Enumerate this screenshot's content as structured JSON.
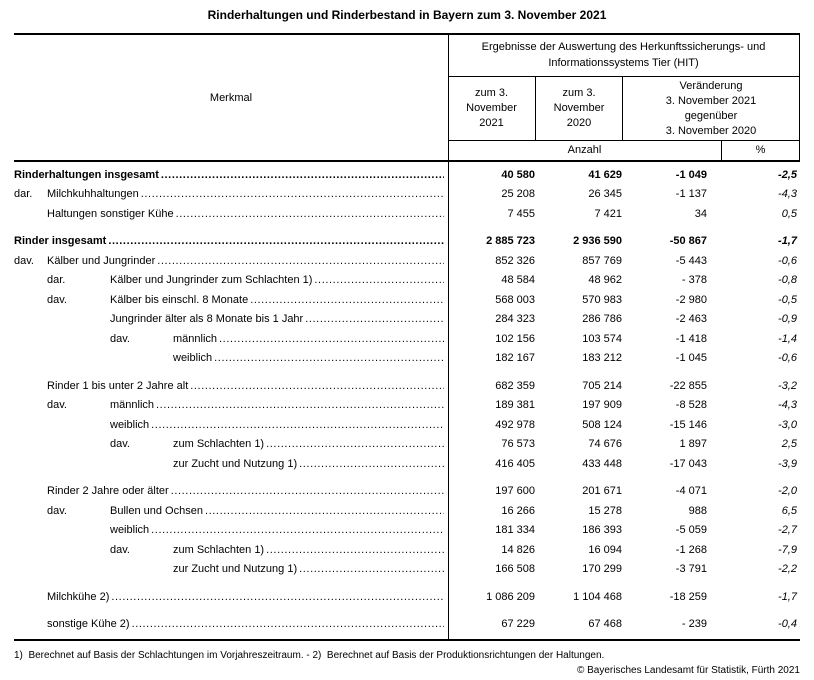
{
  "title": "Rinderhaltungen und Rinderbestand in Bayern zum 3. November 2021",
  "table": {
    "merkmal_header": "Merkmal",
    "spanner": "Ergebnisse der Auswertung des Herkunftssicherungs- und\nInformationssystems Tier (HIT)",
    "col_2021": "zum 3.\nNovember\n2021",
    "col_2020": "zum 3.\nNovember\n2020",
    "col_change": "Veränderung\n3. November 2021\ngegenüber\n3. November 2020",
    "unit_number": "Anzahl",
    "unit_percent": "%",
    "rows": [
      {
        "prefix": "",
        "level": 0,
        "label": "Rinderhaltungen insgesamt",
        "bold": true,
        "gap": false,
        "v2021": "40 580",
        "v2020": "41 629",
        "change": "-1 049",
        "pct": "-2,5"
      },
      {
        "prefix": "dar.",
        "level": 1,
        "label": "Milchkuhhaltungen",
        "bold": false,
        "gap": false,
        "v2021": "25 208",
        "v2020": "26 345",
        "change": "-1 137",
        "pct": "-4,3"
      },
      {
        "prefix": "",
        "level": 1,
        "label": "Haltungen sonstiger Kühe",
        "bold": false,
        "gap": false,
        "v2021": "7 455",
        "v2020": "7 421",
        "change": "34",
        "pct": "0,5"
      },
      {
        "prefix": "",
        "level": 0,
        "label": "Rinder insgesamt",
        "bold": true,
        "gap": true,
        "v2021": "2 885 723",
        "v2020": "2 936 590",
        "change": "-50 867",
        "pct": "-1,7"
      },
      {
        "prefix": "dav.",
        "level": 1,
        "label": "Kälber und Jungrinder",
        "bold": false,
        "gap": false,
        "v2021": "852 326",
        "v2020": "857 769",
        "change": "-5 443",
        "pct": "-0,6"
      },
      {
        "prefix": "dar.",
        "level": 2,
        "label": "Kälber und Jungrinder zum Schlachten 1)",
        "bold": false,
        "gap": false,
        "v2021": "48 584",
        "v2020": "48 962",
        "change": "- 378",
        "pct": "-0,8"
      },
      {
        "prefix": "dav.",
        "level": 2,
        "label": "Kälber bis einschl. 8 Monate",
        "bold": false,
        "gap": false,
        "v2021": "568 003",
        "v2020": "570 983",
        "change": "-2 980",
        "pct": "-0,5"
      },
      {
        "prefix": "",
        "level": 2,
        "label": "Jungrinder älter als 8 Monate bis 1 Jahr",
        "bold": false,
        "gap": false,
        "v2021": "284 323",
        "v2020": "286 786",
        "change": "-2 463",
        "pct": "-0,9"
      },
      {
        "prefix": "dav.",
        "level": 3,
        "label": "männlich",
        "bold": false,
        "gap": false,
        "v2021": "102 156",
        "v2020": "103 574",
        "change": "-1 418",
        "pct": "-1,4"
      },
      {
        "prefix": "",
        "level": 3,
        "label": "weiblich",
        "bold": false,
        "gap": false,
        "v2021": "182 167",
        "v2020": "183 212",
        "change": "-1 045",
        "pct": "-0,6"
      },
      {
        "prefix": "",
        "level": 1,
        "label": "Rinder 1 bis unter 2 Jahre alt",
        "bold": false,
        "gap": true,
        "v2021": "682 359",
        "v2020": "705 214",
        "change": "-22 855",
        "pct": "-3,2"
      },
      {
        "prefix": "dav.",
        "level": 2,
        "label": "männlich",
        "bold": false,
        "gap": false,
        "v2021": "189 381",
        "v2020": "197 909",
        "change": "-8 528",
        "pct": "-4,3"
      },
      {
        "prefix": "",
        "level": 2,
        "label": "weiblich",
        "bold": false,
        "gap": false,
        "v2021": "492 978",
        "v2020": "508 124",
        "change": "-15 146",
        "pct": "-3,0"
      },
      {
        "prefix": "dav.",
        "level": 3,
        "label": "zum Schlachten 1)",
        "bold": false,
        "gap": false,
        "v2021": "76 573",
        "v2020": "74 676",
        "change": "1 897",
        "pct": "2,5"
      },
      {
        "prefix": "",
        "level": 3,
        "label": "zur Zucht und Nutzung 1)",
        "bold": false,
        "gap": false,
        "v2021": "416 405",
        "v2020": "433 448",
        "change": "-17 043",
        "pct": "-3,9"
      },
      {
        "prefix": "",
        "level": 1,
        "label": "Rinder 2 Jahre oder älter",
        "bold": false,
        "gap": true,
        "v2021": "197 600",
        "v2020": "201 671",
        "change": "-4 071",
        "pct": "-2,0"
      },
      {
        "prefix": "dav.",
        "level": 2,
        "label": "Bullen und Ochsen",
        "bold": false,
        "gap": false,
        "v2021": "16 266",
        "v2020": "15 278",
        "change": "988",
        "pct": "6,5"
      },
      {
        "prefix": "",
        "level": 2,
        "label": "weiblich",
        "bold": false,
        "gap": false,
        "v2021": "181 334",
        "v2020": "186 393",
        "change": "-5 059",
        "pct": "-2,7"
      },
      {
        "prefix": "dav.",
        "level": 3,
        "label": "zum Schlachten 1)",
        "bold": false,
        "gap": false,
        "v2021": "14 826",
        "v2020": "16 094",
        "change": "-1 268",
        "pct": "-7,9"
      },
      {
        "prefix": "",
        "level": 3,
        "label": "zur Zucht und Nutzung 1)",
        "bold": false,
        "gap": false,
        "v2021": "166 508",
        "v2020": "170 299",
        "change": "-3 791",
        "pct": "-2,2"
      },
      {
        "prefix": "",
        "level": 1,
        "label": "Milchkühe 2)",
        "bold": false,
        "gap": true,
        "v2021": "1 086 209",
        "v2020": "1 104 468",
        "change": "-18 259",
        "pct": "-1,7"
      },
      {
        "prefix": "",
        "level": 1,
        "label": "sonstige Kühe 2)",
        "bold": false,
        "gap": true,
        "v2021": "67 229",
        "v2020": "67 468",
        "change": "- 239",
        "pct": "-0,4"
      }
    ]
  },
  "footnote": "1)  Berechnet auf Basis der Schlachtungen im Vorjahreszeitraum. - 2)  Berechnet auf Basis der Produktionsrichtungen der Haltungen.",
  "copyright": "© Bayerisches Landesamt für Statistik, Fürth 2021"
}
